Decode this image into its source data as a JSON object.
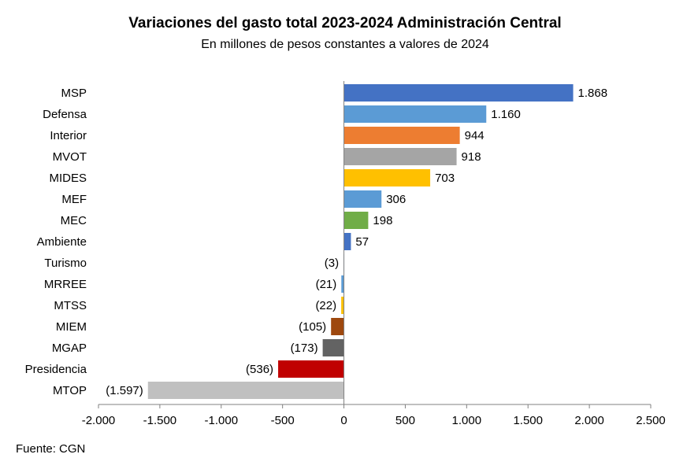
{
  "chart_data": {
    "type": "bar",
    "orientation": "horizontal",
    "title": "Variaciones del gasto total 2023-2024 Administración Central",
    "subtitle": "En millones de pesos constantes a valores de 2024",
    "source": "Fuente: CGN",
    "xlim": [
      -2000,
      2500
    ],
    "grid": false,
    "categories": [
      "MSP",
      "Defensa",
      "Interior",
      "MVOT",
      "MIDES",
      "MEF",
      "MEC",
      "Ambiente",
      "Turismo",
      "MRREE",
      "MTSS",
      "MIEM",
      "MGAP",
      "Presidencia",
      "MTOP"
    ],
    "values": [
      1868,
      1160,
      944,
      918,
      703,
      306,
      198,
      57,
      -3,
      -21,
      -22,
      -105,
      -173,
      -536,
      -1597
    ],
    "value_labels": [
      "1.868",
      "1.160",
      "944",
      "918",
      "703",
      "306",
      "198",
      "57",
      "(3)",
      "(21)",
      "(22)",
      "(105)",
      "(173)",
      "(536)",
      "(1.597)"
    ],
    "colors": [
      "#4472C4",
      "#5B9BD5",
      "#ED7D31",
      "#A5A5A5",
      "#FFC000",
      "#5B9BD5",
      "#70AD47",
      "#4472C4",
      "#5B9BD5",
      "#5B9BD5",
      "#FFC000",
      "#9E480E",
      "#636363",
      "#C00000",
      "#C0C0C0"
    ],
    "ticks": [
      -2000,
      -1500,
      -1000,
      -500,
      0,
      500,
      1000,
      1500,
      2000,
      2500
    ],
    "tick_labels": [
      "-2.000",
      "-1.500",
      "-1.000",
      "-500",
      "0",
      "500",
      "1.000",
      "1.500",
      "2.000",
      "2.500"
    ]
  }
}
